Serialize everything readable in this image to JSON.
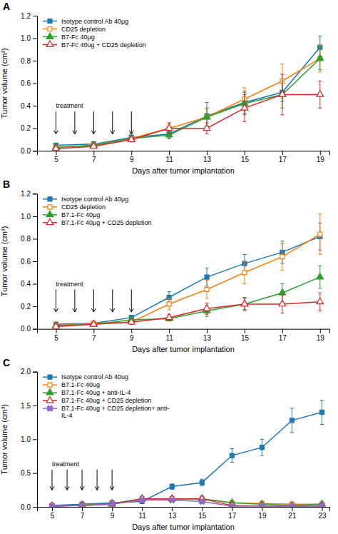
{
  "chart_data": [
    {
      "type": "line",
      "title": "A",
      "xlabel": "Days after tumor implantation",
      "ylabel": "Tumor volume (cm³)",
      "xlim": [
        4,
        19.5
      ],
      "xticks": [
        5,
        7,
        9,
        11,
        13,
        15,
        17,
        19
      ],
      "ylim": [
        0,
        1.2
      ],
      "yticks": [
        {
          "value": 0,
          "label": "0.0"
        },
        0.2,
        0.4,
        0.6,
        0.8,
        {
          "value": 1.0,
          "label": "1.0"
        },
        1.2
      ],
      "grid": false,
      "legend": "upper left",
      "x": [
        5,
        7,
        9,
        11,
        13,
        15,
        17,
        19
      ],
      "annotations": [
        {
          "text": "treatment",
          "x": 5.0,
          "y": 0.38
        },
        {
          "x": 5,
          "y": 0.15,
          "y_from": 0.35
        },
        {
          "x": 6,
          "y": 0.15,
          "y_from": 0.35
        },
        {
          "x": 7,
          "y": 0.15,
          "y_from": 0.35
        },
        {
          "x": 8,
          "y": 0.15,
          "y_from": 0.35
        },
        {
          "x": 9,
          "y": 0.15,
          "y_from": 0.35
        }
      ],
      "series": [
        {
          "name": "Isotype control Ab 40μg",
          "marker": "square",
          "values": [
            0.05,
            0.06,
            0.12,
            0.15,
            0.31,
            0.43,
            0.52,
            0.92
          ],
          "error": [
            0.01,
            0.02,
            0.03,
            0.04,
            0.12,
            0.1,
            0.08,
            0.1
          ]
        },
        {
          "name": "CD25 depletion",
          "marker": "square-open",
          "values": [
            0.03,
            0.05,
            0.11,
            0.2,
            0.3,
            0.46,
            0.62,
            0.82
          ],
          "error": [
            0.01,
            0.01,
            0.02,
            0.04,
            0.08,
            0.1,
            0.15,
            0.12
          ]
        },
        {
          "name": "B7-Fc 40μg",
          "marker": "triangle",
          "values": [
            0.03,
            0.05,
            0.11,
            0.14,
            0.3,
            0.42,
            0.5,
            0.82
          ],
          "error": [
            0.01,
            0.01,
            0.02,
            0.03,
            0.08,
            0.1,
            0.12,
            0.1
          ]
        },
        {
          "name": "B7-Fc 40ug + CD25 depletion",
          "marker": "triangle-open",
          "values": [
            0.02,
            0.04,
            0.1,
            0.2,
            0.2,
            0.38,
            0.5,
            0.5
          ],
          "error": [
            0.01,
            0.01,
            0.02,
            0.05,
            0.05,
            0.12,
            0.18,
            0.12
          ]
        }
      ]
    },
    {
      "type": "line",
      "title": "B",
      "xlabel": "Days after tumor implantation",
      "ylabel": "Tumor volume (cm³)",
      "xlim": [
        4,
        19.5
      ],
      "xticks": [
        5,
        7,
        9,
        11,
        13,
        15,
        17,
        19
      ],
      "ylim": [
        0,
        1.2
      ],
      "yticks": [
        {
          "value": 0,
          "label": "0.0"
        },
        0.2,
        0.4,
        0.6,
        0.8,
        {
          "value": 1.0,
          "label": "1.0"
        },
        1.2
      ],
      "grid": false,
      "legend": "upper left",
      "x": [
        5,
        7,
        9,
        11,
        13,
        15,
        17,
        19
      ],
      "annotations": [
        {
          "text": "treatment",
          "x": 5.0,
          "y": 0.38
        },
        {
          "x": 5,
          "y": 0.15,
          "y_from": 0.35
        },
        {
          "x": 6,
          "y": 0.15,
          "y_from": 0.35
        },
        {
          "x": 7,
          "y": 0.15,
          "y_from": 0.35
        },
        {
          "x": 8,
          "y": 0.15,
          "y_from": 0.35
        },
        {
          "x": 9,
          "y": 0.15,
          "y_from": 0.35
        }
      ],
      "series": [
        {
          "name": "Isotype control Ab 40μg",
          "marker": "square",
          "values": [
            0.04,
            0.05,
            0.1,
            0.28,
            0.46,
            0.58,
            0.68,
            0.82
          ],
          "error": [
            0.01,
            0.01,
            0.02,
            0.05,
            0.08,
            0.08,
            0.1,
            0.12
          ]
        },
        {
          "name": "CD25 depletion",
          "marker": "square-open",
          "values": [
            0.03,
            0.05,
            0.06,
            0.22,
            0.35,
            0.5,
            0.64,
            0.84
          ],
          "error": [
            0.01,
            0.01,
            0.02,
            0.05,
            0.08,
            0.1,
            0.12,
            0.18
          ]
        },
        {
          "name": "B7.1-Fc 40μg",
          "marker": "triangle",
          "values": [
            0.03,
            0.04,
            0.08,
            0.09,
            0.16,
            0.22,
            0.32,
            0.46
          ],
          "error": [
            0.01,
            0.01,
            0.02,
            0.02,
            0.05,
            0.06,
            0.08,
            0.1
          ]
        },
        {
          "name": "B7.1-Fc 40μg + CD25 depletion",
          "marker": "triangle-open",
          "values": [
            0.02,
            0.04,
            0.06,
            0.1,
            0.18,
            0.22,
            0.22,
            0.24
          ],
          "error": [
            0.01,
            0.01,
            0.02,
            0.03,
            0.05,
            0.05,
            0.08,
            0.08
          ]
        }
      ]
    },
    {
      "type": "line",
      "title": "C",
      "xlabel": "Days after tumor implantation",
      "ylabel": "Tumor volume (cm³)",
      "xlim": [
        4,
        23.5
      ],
      "xticks": [
        5,
        7,
        9,
        11,
        13,
        15,
        17,
        19,
        21,
        23
      ],
      "ylim": [
        0,
        2.0
      ],
      "yticks": [
        {
          "value": 0,
          "label": "0.0"
        },
        0.5,
        {
          "value": 1.0,
          "label": "1.0"
        },
        1.5,
        {
          "value": 2.0,
          "label": "2.0"
        }
      ],
      "grid": false,
      "legend": "upper left",
      "x": [
        5,
        7,
        9,
        11,
        13,
        15,
        17,
        19,
        21,
        23
      ],
      "annotations": [
        {
          "text": "treatment",
          "x": 5.0,
          "y": 0.6
        },
        {
          "x": 5,
          "y": 0.25,
          "y_from": 0.55
        },
        {
          "x": 6,
          "y": 0.25,
          "y_from": 0.55
        },
        {
          "x": 7,
          "y": 0.25,
          "y_from": 0.55
        },
        {
          "x": 8,
          "y": 0.25,
          "y_from": 0.55
        },
        {
          "x": 9,
          "y": 0.25,
          "y_from": 0.55
        }
      ],
      "series": [
        {
          "name": "Isotype control Ab 40ug",
          "marker": "square",
          "values": [
            0.02,
            0.04,
            0.06,
            0.08,
            0.3,
            0.36,
            0.76,
            0.88,
            1.28,
            1.4
          ],
          "error": [
            0.01,
            0.01,
            0.01,
            0.02,
            0.04,
            0.05,
            0.1,
            0.12,
            0.18,
            0.18
          ]
        },
        {
          "name": "B7.1-Fc 40ug",
          "marker": "square-open",
          "values": [
            0.01,
            0.02,
            0.04,
            0.12,
            0.12,
            0.12,
            0.06,
            0.05,
            0.04,
            0.04
          ],
          "error": [
            0.005,
            0.005,
            0.01,
            0.03,
            0.03,
            0.03,
            0.02,
            0.02,
            0.01,
            0.01
          ]
        },
        {
          "name": "B7.1-Fc 40ug + anti-IL-4",
          "marker": "triangle",
          "values": [
            0.01,
            0.03,
            0.05,
            0.12,
            0.12,
            0.12,
            0.06,
            0.04,
            0.02,
            0.04
          ],
          "error": [
            0.005,
            0.01,
            0.01,
            0.03,
            0.03,
            0.04,
            0.02,
            0.02,
            0.01,
            0.01
          ]
        },
        {
          "name": "B7.1-Fc 40ug + CD25 depletion",
          "marker": "triangle-open",
          "values": [
            0.01,
            0.02,
            0.04,
            0.12,
            0.12,
            0.12,
            0.02,
            0.01,
            0.01,
            0.01
          ],
          "error": [
            0.005,
            0.005,
            0.01,
            0.03,
            0.03,
            0.03,
            0.01,
            0.005,
            0.005,
            0.005
          ]
        },
        {
          "name": "B7.1-Fc 40ug + CD25 depletion+ anti-\nIL-4",
          "marker": "x",
          "values": [
            0.01,
            0.02,
            0.04,
            0.1,
            0.1,
            0.08,
            0.01,
            0.01,
            0.01,
            0.02
          ],
          "error": [
            0.005,
            0.005,
            0.01,
            0.02,
            0.02,
            0.02,
            0.005,
            0.005,
            0.005,
            0.005
          ]
        }
      ]
    }
  ]
}
